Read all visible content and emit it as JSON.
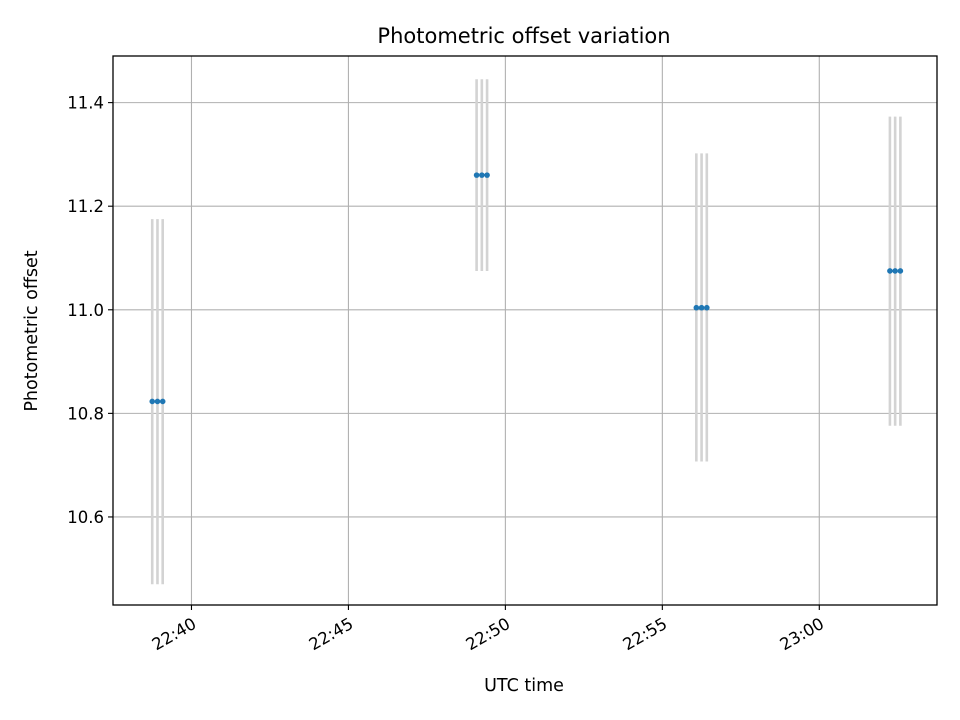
{
  "chart_data": {
    "type": "scatter",
    "title": "Photometric offset variation",
    "xlabel": "UTC time",
    "ylabel": "Photometric offset",
    "x_tick_labels": [
      "22:40",
      "22:45",
      "22:50",
      "22:55",
      "23:00"
    ],
    "y_tick_labels": [
      "10.6",
      "10.8",
      "11.0",
      "11.2",
      "11.4"
    ],
    "xlim": [
      "22:37:30",
      "23:03:45"
    ],
    "ylim": [
      10.43,
      11.49
    ],
    "grid": true,
    "legend": "none",
    "points": [
      {
        "x": "22:38:45",
        "y": 10.823,
        "yerr_low": 10.47,
        "yerr_high": 11.175
      },
      {
        "x": "22:38:55",
        "y": 10.823,
        "yerr_low": 10.47,
        "yerr_high": 11.175
      },
      {
        "x": "22:39:05",
        "y": 10.823,
        "yerr_low": 10.47,
        "yerr_high": 11.175
      },
      {
        "x": "22:49:05",
        "y": 11.26,
        "yerr_low": 11.075,
        "yerr_high": 11.445
      },
      {
        "x": "22:49:15",
        "y": 11.26,
        "yerr_low": 11.075,
        "yerr_high": 11.445
      },
      {
        "x": "22:49:25",
        "y": 11.26,
        "yerr_low": 11.075,
        "yerr_high": 11.445
      },
      {
        "x": "22:56:05",
        "y": 11.004,
        "yerr_low": 10.707,
        "yerr_high": 11.302
      },
      {
        "x": "22:56:15",
        "y": 11.004,
        "yerr_low": 10.707,
        "yerr_high": 11.302
      },
      {
        "x": "22:56:25",
        "y": 11.004,
        "yerr_low": 10.707,
        "yerr_high": 11.302
      },
      {
        "x": "23:02:15",
        "y": 11.075,
        "yerr_low": 10.776,
        "yerr_high": 11.373
      },
      {
        "x": "23:02:25",
        "y": 11.075,
        "yerr_low": 10.776,
        "yerr_high": 11.373
      },
      {
        "x": "23:02:35",
        "y": 11.075,
        "yerr_low": 10.776,
        "yerr_high": 11.373
      }
    ],
    "colors": {
      "marker": "#1f77b4",
      "errorbar": "#d3d3d3",
      "grid": "#b0b0b0",
      "axes": "#000000"
    }
  }
}
